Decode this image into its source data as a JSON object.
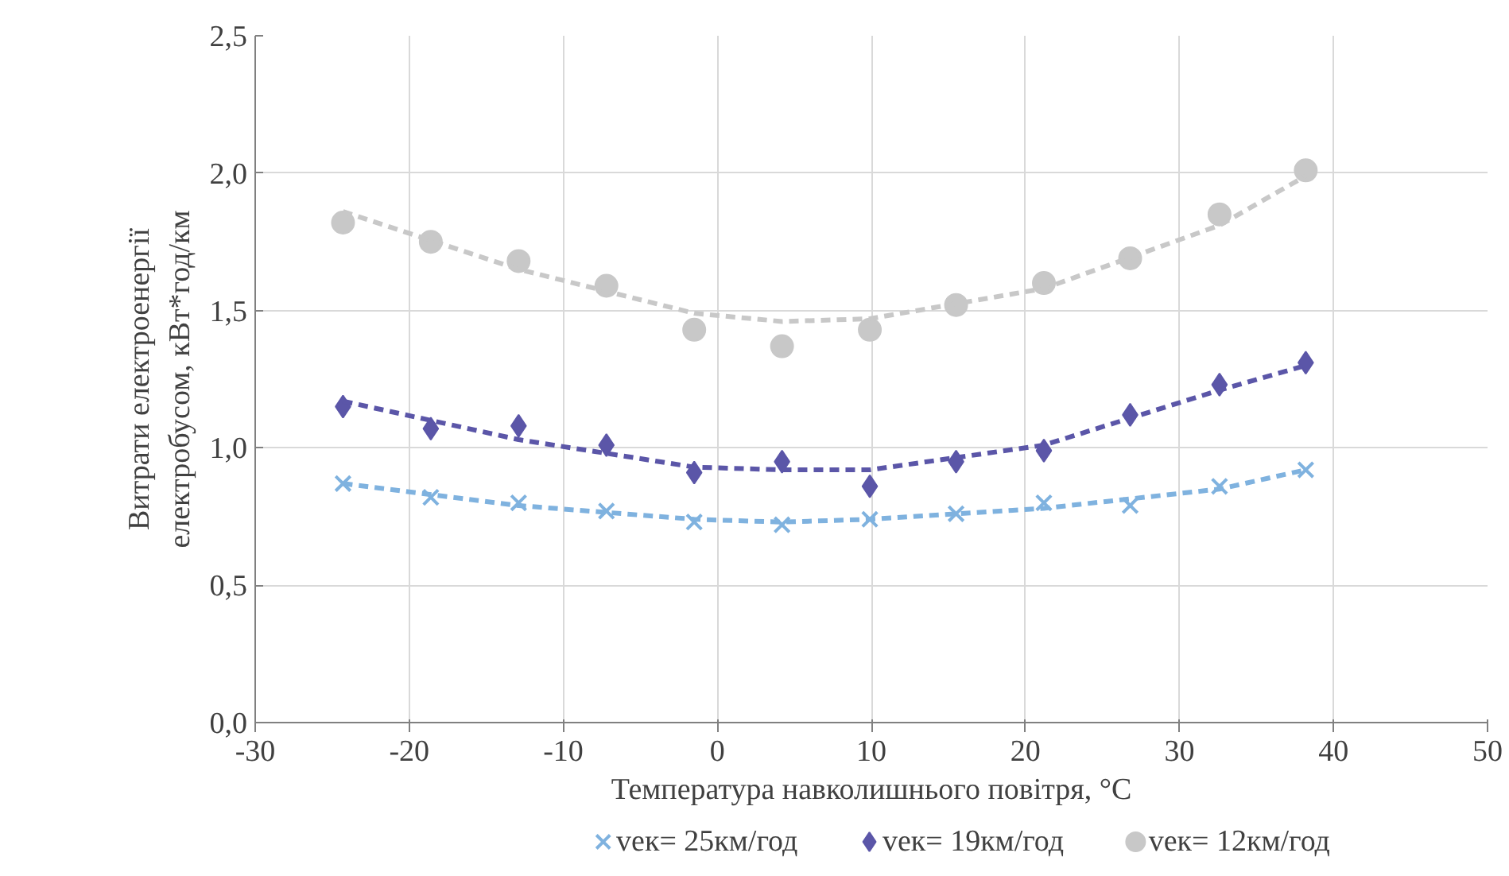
{
  "chart_data": {
    "type": "scatter",
    "xlabel": "Температура навколишнього повітря, °C",
    "ylabel": "Витрати електроенергії\nелектробусом, кВт*год/км",
    "x": [
      -24.3,
      -18.6,
      -12.9,
      -7.2,
      -1.5,
      4.2,
      9.9,
      15.5,
      21.2,
      26.8,
      32.6,
      38.2
    ],
    "series": [
      {
        "name": "vек= 25км/год",
        "color": "#7fb2df",
        "marker": "cross",
        "values": [
          0.87,
          0.82,
          0.8,
          0.77,
          0.73,
          0.72,
          0.74,
          0.76,
          0.8,
          0.79,
          0.86,
          0.92
        ]
      },
      {
        "name": "vек= 19км/год",
        "color": "#5b56a8",
        "marker": "diamond",
        "values": [
          1.15,
          1.07,
          1.08,
          1.01,
          0.91,
          0.95,
          0.86,
          0.95,
          0.99,
          1.12,
          1.23,
          1.31
        ]
      },
      {
        "name": "vек= 12км/год",
        "color": "#c8c8c8",
        "marker": "circle",
        "values": [
          1.82,
          1.75,
          1.68,
          1.59,
          1.43,
          1.37,
          1.43,
          1.52,
          1.6,
          1.69,
          1.85,
          2.01
        ]
      },
      {
        "type": "line",
        "line_style": "dashed",
        "marker": "none",
        "color": "#7fb2df",
        "x": [
          -24.3,
          -12.9,
          -1.5,
          4.2,
          9.9,
          21.2,
          32.6,
          38.2
        ],
        "values": [
          0.87,
          0.79,
          0.74,
          0.73,
          0.74,
          0.78,
          0.85,
          0.92
        ]
      },
      {
        "type": "line",
        "line_style": "dashed",
        "marker": "none",
        "color": "#5b56a8",
        "x": [
          -24.3,
          -12.9,
          -1.5,
          4.2,
          9.9,
          21.2,
          32.6,
          38.2
        ],
        "values": [
          1.17,
          1.03,
          0.93,
          0.92,
          0.92,
          1.01,
          1.21,
          1.3
        ]
      },
      {
        "type": "line",
        "line_style": "dashed",
        "marker": "none",
        "color": "#c8c8c8",
        "x": [
          -24.3,
          -12.9,
          -1.5,
          4.2,
          9.9,
          21.2,
          32.6,
          38.2
        ],
        "values": [
          1.86,
          1.65,
          1.49,
          1.46,
          1.47,
          1.58,
          1.81,
          1.99
        ]
      }
    ],
    "xlim": [
      -30,
      50
    ],
    "xticks": [
      -30,
      -20,
      -10,
      0,
      10,
      20,
      30,
      40,
      50
    ],
    "ylim": [
      0,
      2.5
    ],
    "yticks": [
      {
        "value": 0,
        "label": "0,0"
      },
      {
        "value": 0.5,
        "label": "0,5"
      },
      {
        "value": 1,
        "label": "1,0"
      },
      {
        "value": 1.5,
        "label": "1,5"
      },
      {
        "value": 2,
        "label": "2,0"
      },
      {
        "value": 2.5,
        "label": "2,5"
      }
    ],
    "grid": true,
    "legend": "bottom"
  }
}
